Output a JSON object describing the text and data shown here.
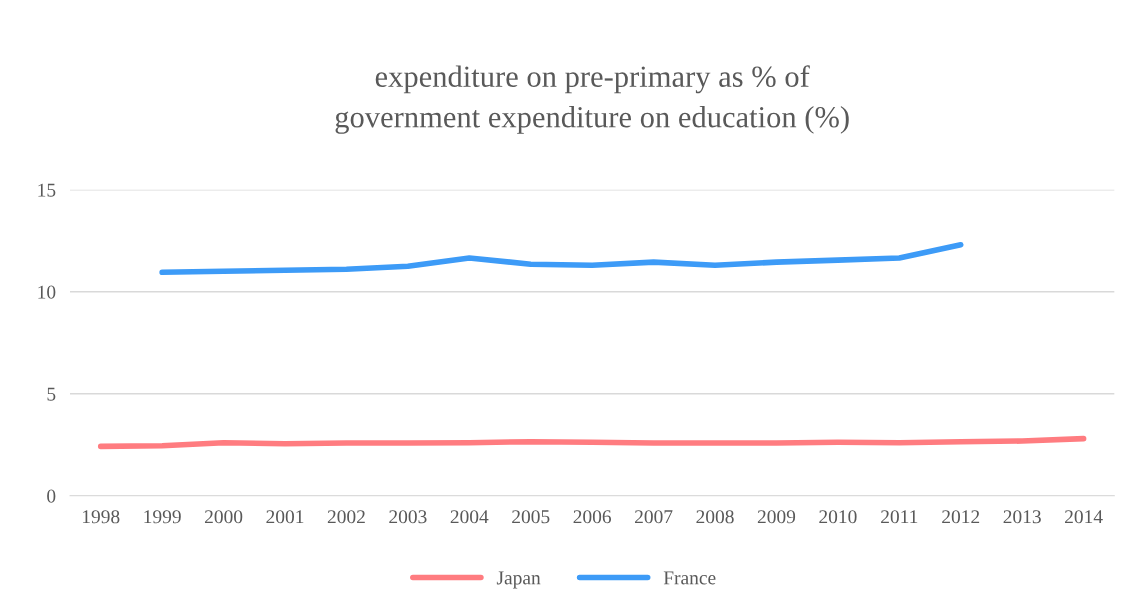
{
  "chart_data": {
    "type": "line",
    "title": "expenditure on pre-primary as % of\ngovernment expenditure on education (%)",
    "categories": [
      "1998",
      "1999",
      "2000",
      "2001",
      "2002",
      "2003",
      "2004",
      "2005",
      "2006",
      "2007",
      "2008",
      "2009",
      "2010",
      "2011",
      "2012",
      "2013",
      "2014"
    ],
    "series": [
      {
        "name": "Japan",
        "color": "#ff7c80",
        "values": [
          2.42,
          2.45,
          2.6,
          2.55,
          2.58,
          2.58,
          2.6,
          2.65,
          2.62,
          2.58,
          2.58,
          2.58,
          2.62,
          2.6,
          2.65,
          2.68,
          2.8
        ]
      },
      {
        "name": "France",
        "color": "#3d9bf7",
        "values": [
          null,
          10.95,
          11.0,
          11.05,
          11.1,
          11.25,
          11.65,
          11.35,
          11.3,
          11.45,
          11.3,
          11.45,
          11.55,
          11.65,
          12.3,
          null,
          null
        ]
      }
    ],
    "ylim": [
      0,
      15
    ],
    "yticks": [
      0,
      5,
      10,
      15
    ],
    "grid": "y",
    "legend": "bottom",
    "marker": "none",
    "line_style": "solid"
  }
}
